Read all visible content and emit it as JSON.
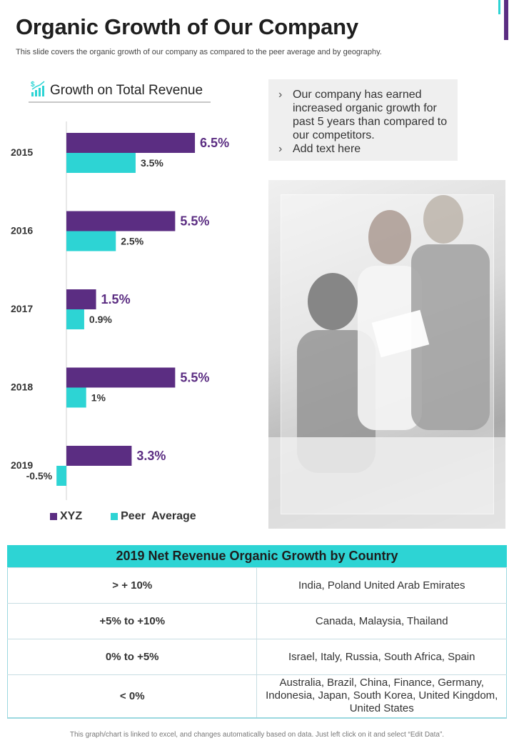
{
  "title": "Organic Growth of Our Company",
  "subtitle": "This slide covers the organic growth of our company as compared to the peer average and by geography.",
  "chart_heading": "Growth on Total Revenue",
  "chart_heading_icon": "chart-bar-dollar-icon",
  "colors": {
    "xyz": "#5b2d82",
    "peer": "#2dd4d4",
    "accent_teal": "#2dd4d4",
    "accent_purple": "#5b2d82"
  },
  "chart_data": {
    "type": "bar",
    "orientation": "horizontal",
    "title": "Growth on Total Revenue",
    "categories": [
      "2015",
      "2016",
      "2017",
      "2018",
      "2019"
    ],
    "series": [
      {
        "name": "XYZ",
        "values": [
          6.5,
          5.5,
          1.5,
          5.5,
          3.3
        ],
        "labels": [
          "6.5%",
          "5.5%",
          "1.5%",
          "5.5%",
          "3.3%"
        ]
      },
      {
        "name": "Peer  Average",
        "values": [
          3.5,
          2.5,
          0.9,
          1.0,
          -0.5
        ],
        "labels": [
          "3.5%",
          "2.5%",
          "0.9%",
          "1%",
          "-0.5%"
        ]
      }
    ],
    "legend_position": "bottom-left"
  },
  "notes": [
    "Our company has earned increased organic growth for past 5 years than compared to our competitors.",
    "Add text here"
  ],
  "note_bullet": "›",
  "table": {
    "header": "2019 Net Revenue Organic Growth by Country",
    "rows": [
      {
        "range": "> + 10%",
        "countries": "India, Poland United Arab Emirates"
      },
      {
        "range": "+5% to +10%",
        "countries": "Canada, Malaysia, Thailand"
      },
      {
        "range": "0% to +5%",
        "countries": "Israel, Italy, Russia, South Africa, Spain"
      },
      {
        "range": "< 0%",
        "countries": "Australia, Brazil, China, Finance, Germany, Indonesia, Japan, South Korea, United Kingdom, United States"
      }
    ]
  },
  "footer": "This graph/chart is linked to excel, and changes automatically based on data. Just left click on it and select “Edit Data”."
}
